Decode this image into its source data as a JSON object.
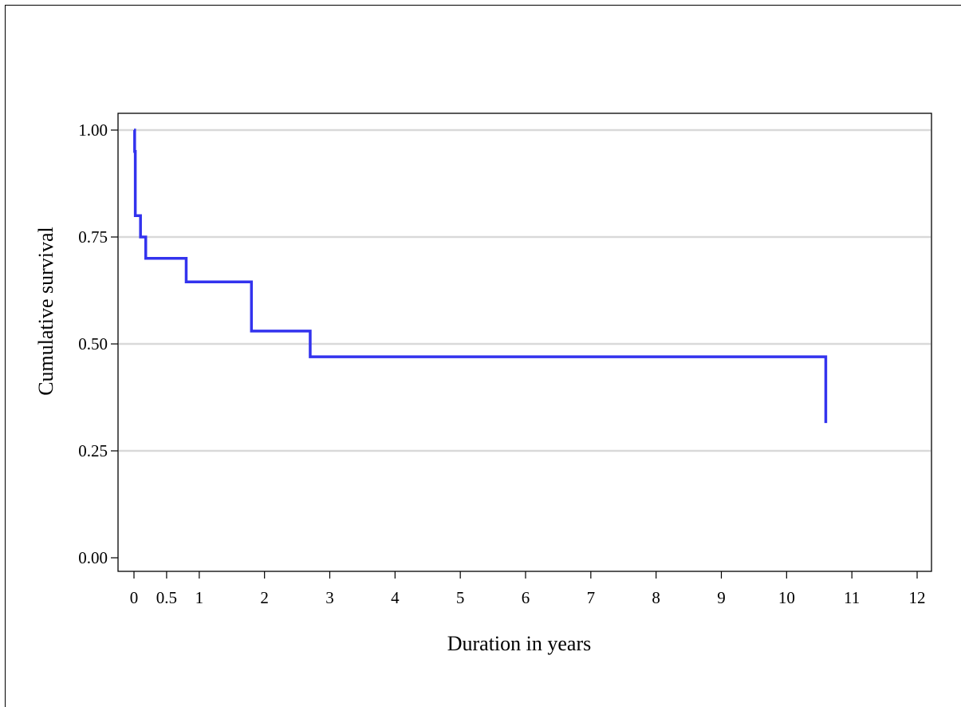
{
  "chart_data": {
    "type": "line",
    "title": "",
    "xlabel": "Duration in years",
    "ylabel": "Cumulative survival",
    "xlim": [
      0,
      12
    ],
    "ylim": [
      0,
      1
    ],
    "x_ticks": [
      0,
      0.5,
      1,
      2,
      3,
      4,
      5,
      6,
      7,
      8,
      9,
      10,
      11,
      12
    ],
    "x_tick_labels": [
      "0",
      "0.5",
      "1",
      "2",
      "3",
      "4",
      "5",
      "6",
      "7",
      "8",
      "9",
      "10",
      "11",
      "12"
    ],
    "y_ticks": [
      0,
      0.25,
      0.5,
      0.75,
      1
    ],
    "y_tick_labels": [
      "0.00",
      "0.25",
      "0.50",
      "0.75",
      "1.00"
    ],
    "grid": "horizontal",
    "legend": "none",
    "line_color": "#3333ee",
    "grid_color": "#d9d9d9",
    "series": [
      {
        "style": "step-post",
        "x": [
          0,
          0.01,
          0.02,
          0.1,
          0.18,
          0.8,
          1.8,
          2.7,
          10.6,
          10.6
        ],
        "y": [
          1.0,
          0.95,
          0.8,
          0.75,
          0.7,
          0.645,
          0.53,
          0.47,
          0.47,
          0.315
        ]
      }
    ]
  }
}
